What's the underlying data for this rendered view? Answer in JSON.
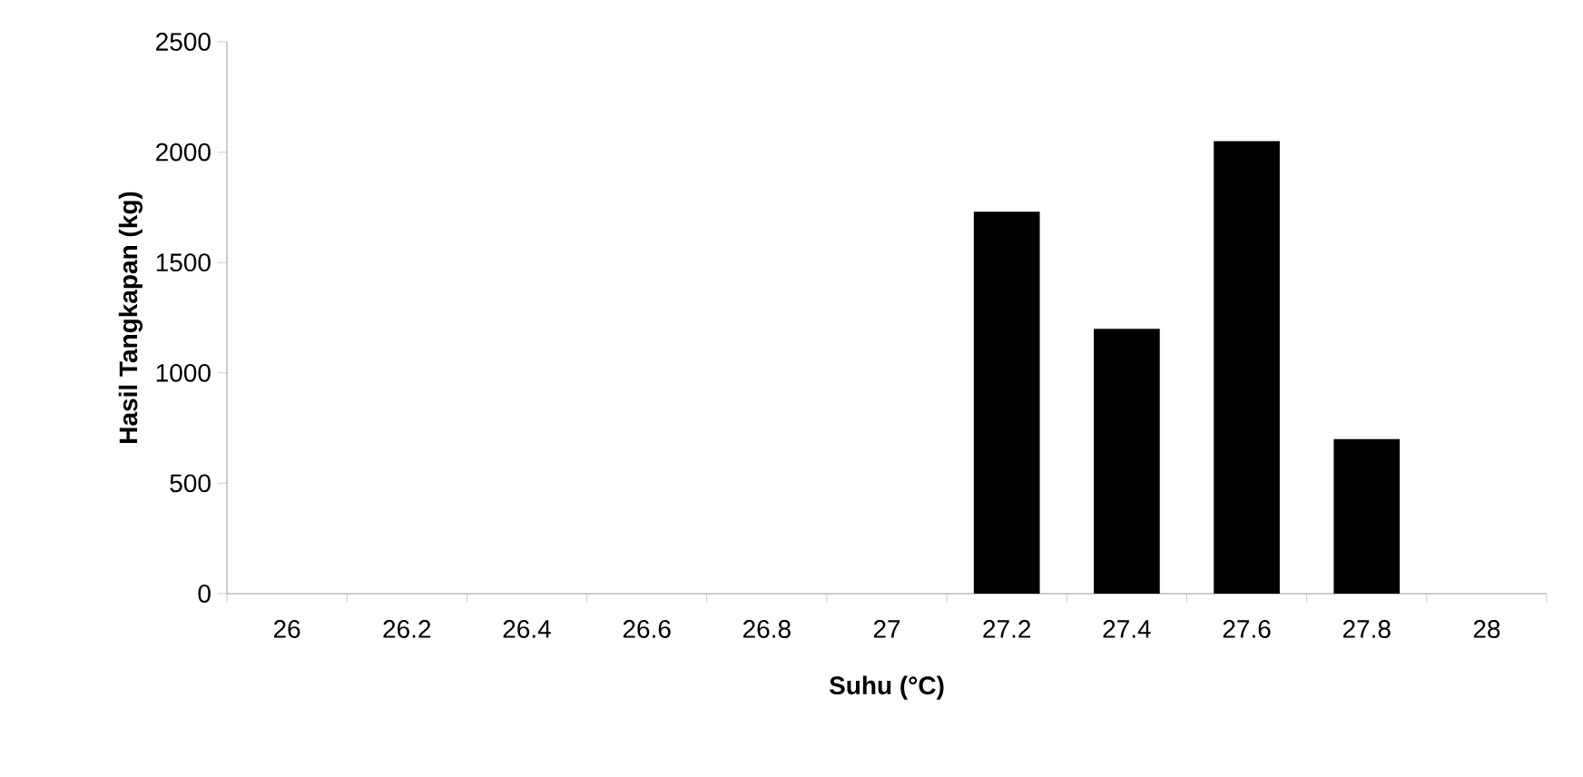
{
  "chart_data": {
    "type": "bar",
    "xlabel": "Suhu (°C)",
    "ylabel": "Hasil Tangkapan (kg)",
    "categories": [
      "26",
      "26.2",
      "26.4",
      "26.6",
      "26.8",
      "27",
      "27.2",
      "27.4",
      "27.6",
      "27.8",
      "28"
    ],
    "values": [
      0,
      0,
      0,
      0,
      0,
      0,
      1730,
      1200,
      2050,
      700,
      0
    ],
    "color": "#000000",
    "ylim": [
      0,
      2500
    ],
    "yticks": [
      0,
      500,
      1000,
      1500,
      2000,
      2500
    ],
    "grid": false
  }
}
